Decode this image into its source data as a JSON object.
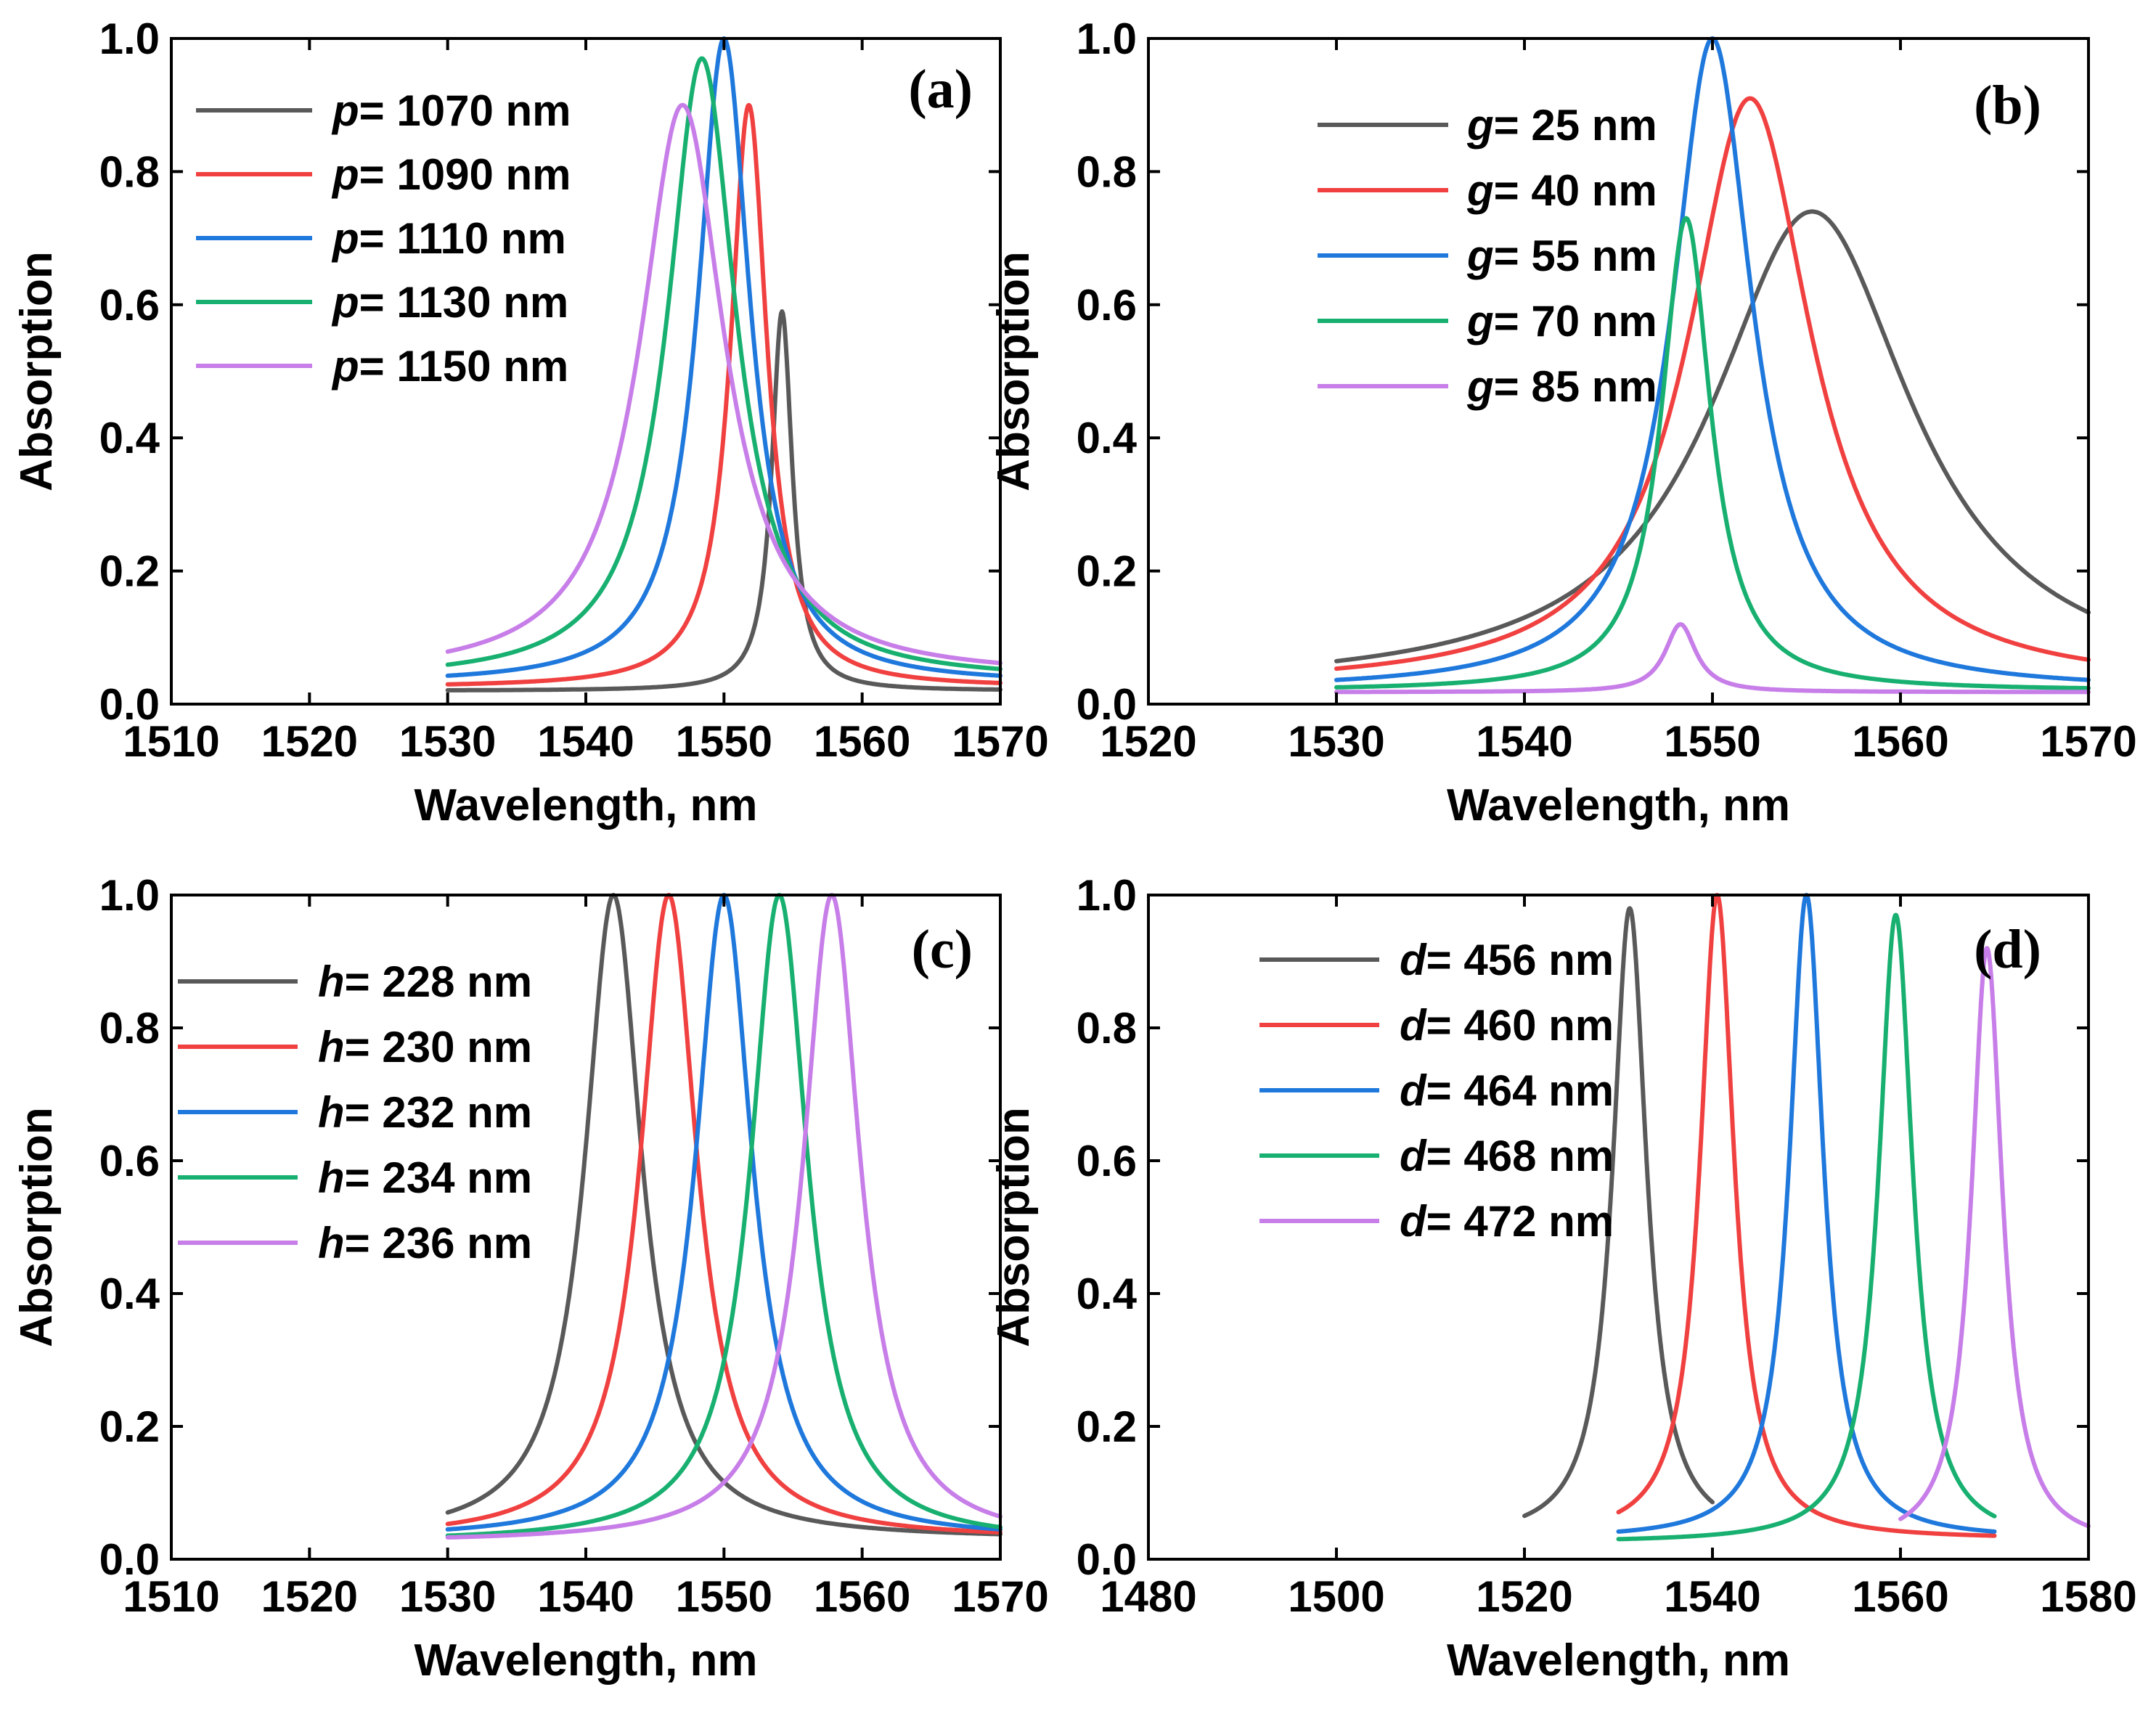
{
  "colors": {
    "series": [
      "#595959",
      "#f04040",
      "#1f78dc",
      "#18b070",
      "#c77ee8"
    ]
  },
  "chart_data": [
    {
      "type": "line",
      "tag": "(a)",
      "xlabel": "Wavelength, nm",
      "ylabel": "Absorption",
      "xlim": [
        1510,
        1570
      ],
      "ylim": [
        0.0,
        1.0
      ],
      "xticks": [
        "1510",
        "1520",
        "1530",
        "1540",
        "1550",
        "1560",
        "1570"
      ],
      "yticks": [
        "0.0",
        "0.2",
        "0.4",
        "0.6",
        "0.8",
        "1.0"
      ],
      "legend_position": "top-left",
      "series": [
        {
          "var": "p",
          "label": "= 1070 nm",
          "x_range": [
            1530,
            1570
          ],
          "center": 1554.2,
          "width": 0.9,
          "peak": 0.59,
          "baseline": 0.02
        },
        {
          "var": "p",
          "label": "= 1090 nm",
          "x_range": [
            1530,
            1570
          ],
          "center": 1551.8,
          "width": 1.6,
          "peak": 0.9,
          "baseline": 0.025
        },
        {
          "var": "p",
          "label": "= 1110 nm",
          "x_range": [
            1530,
            1570
          ],
          "center": 1550.0,
          "width": 2.3,
          "peak": 1.0,
          "baseline": 0.03
        },
        {
          "var": "p",
          "label": "= 1130 nm",
          "x_range": [
            1530,
            1570
          ],
          "center": 1548.4,
          "width": 3.0,
          "peak": 0.97,
          "baseline": 0.035
        },
        {
          "var": "p",
          "label": "= 1150 nm",
          "x_range": [
            1530,
            1570
          ],
          "center": 1547.0,
          "width": 3.7,
          "peak": 0.9,
          "baseline": 0.04
        }
      ]
    },
    {
      "type": "line",
      "tag": "(b)",
      "xlabel": "Wavelength, nm",
      "ylabel": "Absorption",
      "xlim": [
        1520,
        1570
      ],
      "ylim": [
        0.0,
        1.0
      ],
      "xticks": [
        "1520",
        "1530",
        "1540",
        "1550",
        "1560",
        "1570"
      ],
      "yticks": [
        "0.0",
        "0.2",
        "0.4",
        "0.6",
        "0.8",
        "1.0"
      ],
      "legend_position": "top-left",
      "series": [
        {
          "var": "g",
          "label": "= 25 nm",
          "x_range": [
            1530,
            1570
          ],
          "center": 1555.3,
          "width": 6.5,
          "peak": 0.74,
          "baseline": 0.02
        },
        {
          "var": "g",
          "label": "= 40 nm",
          "x_range": [
            1530,
            1570
          ],
          "center": 1552.0,
          "width": 4.0,
          "peak": 0.91,
          "baseline": 0.025
        },
        {
          "var": "g",
          "label": "= 55 nm",
          "x_range": [
            1530,
            1570
          ],
          "center": 1550.0,
          "width": 2.6,
          "peak": 1.0,
          "baseline": 0.02
        },
        {
          "var": "g",
          "label": "= 70 nm",
          "x_range": [
            1530,
            1570
          ],
          "center": 1548.6,
          "width": 1.6,
          "peak": 0.73,
          "baseline": 0.02
        },
        {
          "var": "g",
          "label": "= 85 nm",
          "x_range": [
            1530,
            1570
          ],
          "center": 1548.3,
          "width": 1.0,
          "peak": 0.12,
          "baseline": 0.018
        }
      ]
    },
    {
      "type": "line",
      "tag": "(c)",
      "xlabel": "Wavelength, nm",
      "ylabel": "Absorption",
      "xlim": [
        1510,
        1570
      ],
      "ylim": [
        0.0,
        1.0
      ],
      "xticks": [
        "1510",
        "1520",
        "1530",
        "1540",
        "1550",
        "1560",
        "1570"
      ],
      "yticks": [
        "0.0",
        "0.2",
        "0.4",
        "0.6",
        "0.8",
        "1.0"
      ],
      "legend_position": "top-left",
      "series": [
        {
          "var": "h",
          "label": "= 228 nm",
          "x_range": [
            1530,
            1570
          ],
          "center": 1542.0,
          "width": 2.5,
          "peak": 1.0,
          "baseline": 0.03
        },
        {
          "var": "h",
          "label": "= 230 nm",
          "x_range": [
            1530,
            1570
          ],
          "center": 1546.0,
          "width": 2.5,
          "peak": 1.0,
          "baseline": 0.03
        },
        {
          "var": "h",
          "label": "= 232 nm",
          "x_range": [
            1530,
            1570
          ],
          "center": 1550.0,
          "width": 2.5,
          "peak": 1.0,
          "baseline": 0.03
        },
        {
          "var": "h",
          "label": "= 234 nm",
          "x_range": [
            1530,
            1570
          ],
          "center": 1554.0,
          "width": 2.5,
          "peak": 1.0,
          "baseline": 0.025
        },
        {
          "var": "h",
          "label": "= 236 nm",
          "x_range": [
            1530,
            1570
          ],
          "center": 1557.8,
          "width": 2.5,
          "peak": 1.0,
          "baseline": 0.025
        }
      ]
    },
    {
      "type": "line",
      "tag": "(d)",
      "xlabel": "Wavelength, nm",
      "ylabel": "Absorption",
      "xlim": [
        1480,
        1580
      ],
      "ylim": [
        0.0,
        1.0
      ],
      "xticks": [
        "1480",
        "1500",
        "1520",
        "1540",
        "1560",
        "1580"
      ],
      "yticks": [
        "0.0",
        "0.2",
        "0.4",
        "0.6",
        "0.8",
        "1.0"
      ],
      "legend_position": "top-left",
      "series": [
        {
          "var": "d",
          "label": "= 456 nm",
          "x_range": [
            1520,
            1540
          ],
          "center": 1531.2,
          "width": 2.2,
          "peak": 0.98,
          "baseline": 0.03
        },
        {
          "var": "d",
          "label": "= 460 nm",
          "x_range": [
            1530,
            1570
          ],
          "center": 1540.5,
          "width": 2.2,
          "peak": 1.0,
          "baseline": 0.03
        },
        {
          "var": "d",
          "label": "= 464 nm",
          "x_range": [
            1530,
            1570
          ],
          "center": 1550.0,
          "width": 2.2,
          "peak": 1.0,
          "baseline": 0.03
        },
        {
          "var": "d",
          "label": "= 468 nm",
          "x_range": [
            1530,
            1570
          ],
          "center": 1559.5,
          "width": 2.2,
          "peak": 0.97,
          "baseline": 0.025
        },
        {
          "var": "d",
          "label": "= 472 nm",
          "x_range": [
            1560,
            1580
          ],
          "center": 1569.2,
          "width": 2.0,
          "peak": 0.92,
          "baseline": 0.02
        }
      ]
    }
  ]
}
